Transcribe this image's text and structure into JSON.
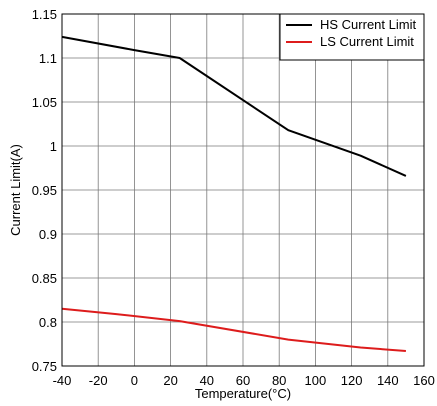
{
  "chart_data": {
    "type": "line",
    "title": "",
    "xlabel": "Temperature(°C)",
    "ylabel": "Current Limit(A)",
    "xlim": [
      -40,
      160
    ],
    "ylim": [
      0.75,
      1.15
    ],
    "x_ticks": [
      -40,
      -20,
      0,
      20,
      40,
      60,
      80,
      100,
      120,
      140,
      160
    ],
    "y_ticks": [
      0.75,
      0.8,
      0.85,
      0.9,
      0.95,
      1.0,
      1.05,
      1.1,
      1.15
    ],
    "x_tick_labels": [
      "-40",
      "-20",
      "0",
      "20",
      "40",
      "60",
      "80",
      "100",
      "120",
      "140",
      "160"
    ],
    "y_tick_labels": [
      "0.75",
      "0.8",
      "0.85",
      "0.9",
      "0.95",
      "1",
      "1.05",
      "1.1",
      "1.15"
    ],
    "grid": true,
    "legend_position": "top-right",
    "series": [
      {
        "name": "HS Current Limit",
        "color": "#000000",
        "x": [
          -40,
          0,
          25,
          85,
          125,
          150
        ],
        "y": [
          1.124,
          1.109,
          1.1,
          1.018,
          0.989,
          0.966
        ]
      },
      {
        "name": "LS Current Limit",
        "color": "#dd1c1c",
        "x": [
          -40,
          -10,
          25,
          85,
          125,
          150
        ],
        "y": [
          0.815,
          0.809,
          0.801,
          0.78,
          0.771,
          0.767
        ]
      }
    ]
  }
}
